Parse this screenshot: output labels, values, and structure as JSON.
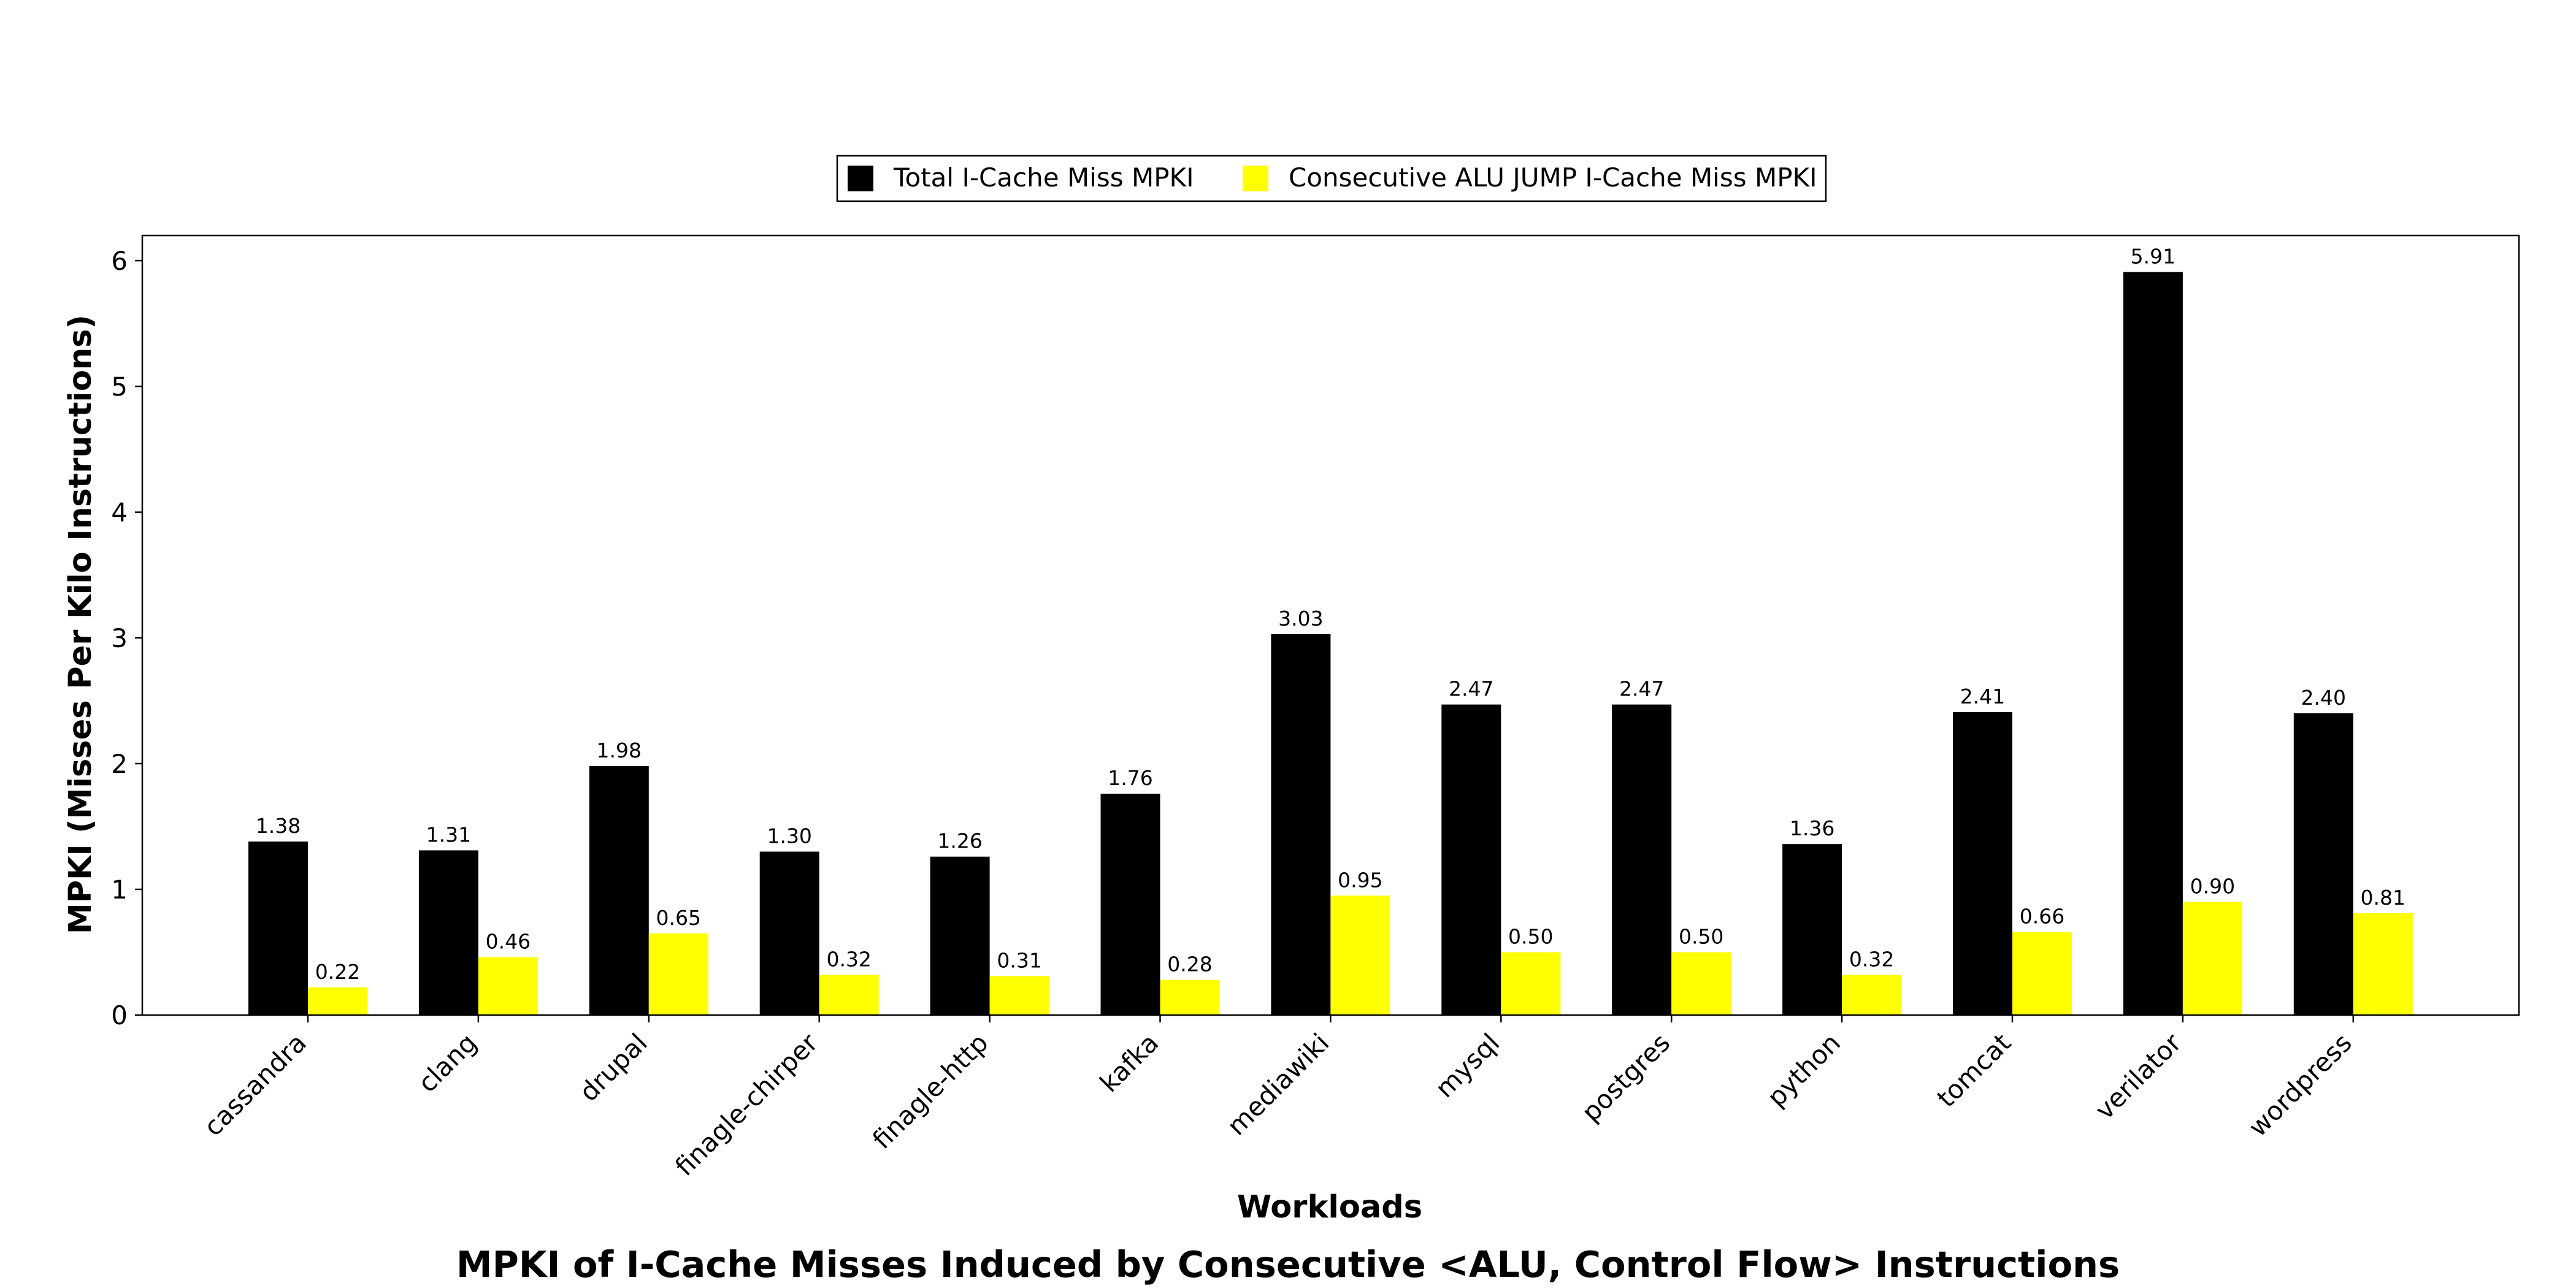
{
  "chart_data": {
    "type": "bar",
    "title": "MPKI of I-Cache Misses Induced by Consecutive <ALU, Control Flow> Instructions",
    "xlabel": "Workloads",
    "ylabel": "MPKI (Misses Per Kilo Instructions)",
    "ylim": [
      0,
      6.2
    ],
    "yticks": [
      "0",
      "1",
      "2",
      "3",
      "4",
      "5",
      "6"
    ],
    "grid": false,
    "legend_position": "top-center",
    "categories": [
      "cassandra",
      "clang",
      "drupal",
      "finagle-chirper",
      "finagle-http",
      "kafka",
      "mediawiki",
      "mysql",
      "postgres",
      "python",
      "tomcat",
      "verilator",
      "wordpress"
    ],
    "series": [
      {
        "name": "Total I-Cache Miss MPKI",
        "color": "#000000",
        "values": [
          1.38,
          1.31,
          1.98,
          1.3,
          1.26,
          1.76,
          3.03,
          2.47,
          2.47,
          1.36,
          2.41,
          5.91,
          2.4
        ],
        "labels": [
          "1.38",
          "1.31",
          "1.98",
          "1.30",
          "1.26",
          "1.76",
          "3.03",
          "2.47",
          "2.47",
          "1.36",
          "2.41",
          "5.91",
          "2.40"
        ]
      },
      {
        "name": "Consecutive ALU JUMP I-Cache Miss MPKI",
        "color": "#ffff00",
        "values": [
          0.22,
          0.46,
          0.65,
          0.32,
          0.31,
          0.28,
          0.95,
          0.5,
          0.5,
          0.32,
          0.66,
          0.9,
          0.81
        ],
        "labels": [
          "0.22",
          "0.46",
          "0.65",
          "0.32",
          "0.31",
          "0.28",
          "0.95",
          "0.50",
          "0.50",
          "0.32",
          "0.66",
          "0.90",
          "0.81"
        ]
      }
    ]
  }
}
